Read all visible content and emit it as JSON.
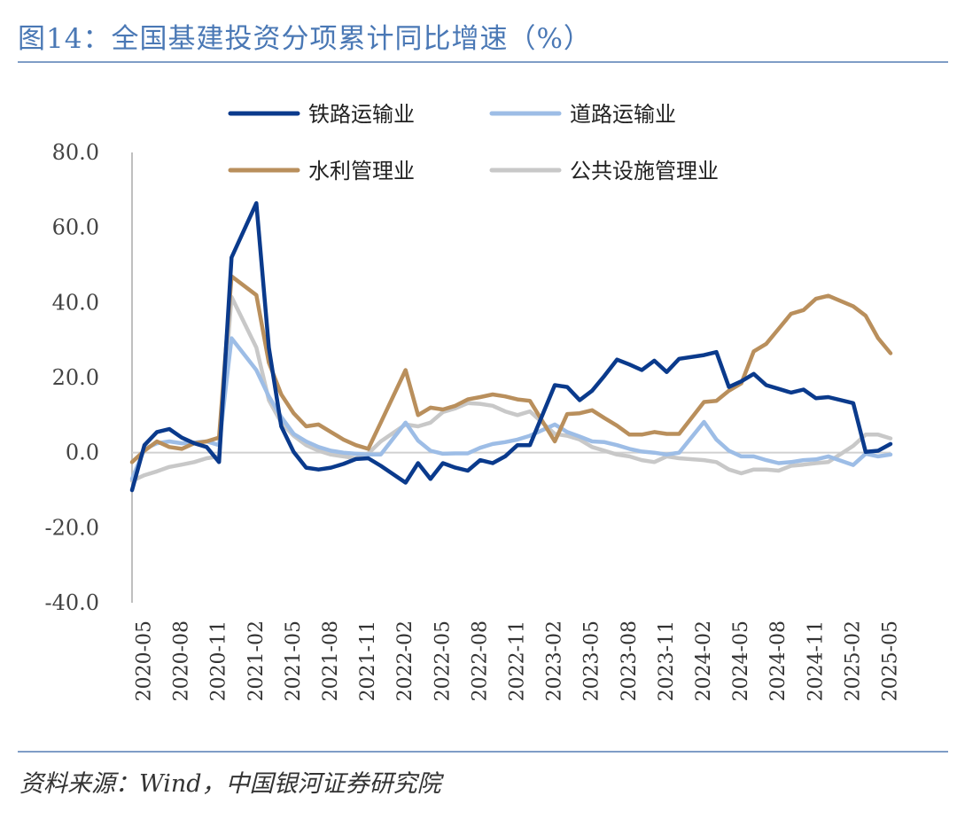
{
  "title": "图14：全国基建投资分项累计同比增速（%）",
  "source": "资料来源：Wind，中国银河证券研究院",
  "chart_data": {
    "type": "line",
    "title": "图14：全国基建投资分项累计同比增速（%）",
    "xlabel": "",
    "ylabel": "",
    "ylim": [
      -40,
      80
    ],
    "yticks": [
      "80.0",
      "60.0",
      "40.0",
      "20.0",
      "0.0",
      "-20.0",
      "-40.0"
    ],
    "x_tick_labels": [
      "2020-05",
      "2020-08",
      "2020-11",
      "2021-02",
      "2021-05",
      "2021-08",
      "2021-11",
      "2022-02",
      "2022-05",
      "2022-08",
      "2022-11",
      "2023-02",
      "2023-05",
      "2023-08",
      "2023-11",
      "2024-02",
      "2024-05",
      "2024-08",
      "2024-11",
      "2025-02",
      "2025-05"
    ],
    "x": [
      "2020-04",
      "2020-05",
      "2020-06",
      "2020-07",
      "2020-08",
      "2020-09",
      "2020-10",
      "2020-11",
      "2020-12",
      "2021-02",
      "2021-03",
      "2021-04",
      "2021-05",
      "2021-06",
      "2021-07",
      "2021-08",
      "2021-09",
      "2021-10",
      "2021-11",
      "2021-12",
      "2022-02",
      "2022-03",
      "2022-04",
      "2022-05",
      "2022-06",
      "2022-07",
      "2022-08",
      "2022-09",
      "2022-10",
      "2022-11",
      "2022-12",
      "2023-02",
      "2023-03",
      "2023-04",
      "2023-05",
      "2023-06",
      "2023-07",
      "2023-08",
      "2023-09",
      "2023-10",
      "2023-11",
      "2023-12",
      "2024-02",
      "2024-03",
      "2024-04",
      "2024-05",
      "2024-06",
      "2024-07",
      "2024-08",
      "2024-09",
      "2024-10",
      "2024-11",
      "2024-12",
      "2025-02",
      "2025-03",
      "2025-04",
      "2025-05"
    ],
    "legend_position": "top",
    "grid": false,
    "series": [
      {
        "name": "铁路运输业",
        "color": "#0a3a8c",
        "values": [
          -10.0,
          2.0,
          5.5,
          6.3,
          4.0,
          2.5,
          1.5,
          -2.5,
          52.0,
          66.5,
          28.0,
          7.0,
          0.2,
          -4.0,
          -4.5,
          -4.0,
          -3.0,
          -1.7,
          -1.5,
          -3.5,
          -8.0,
          -2.8,
          -7.0,
          -2.8,
          -4.0,
          -4.8,
          -2.0,
          -2.8,
          -1.0,
          2.0,
          2.0,
          18.0,
          17.5,
          14.0,
          16.5,
          20.5,
          24.8,
          23.5,
          22.0,
          24.5,
          21.5,
          25.0,
          26.0,
          26.8,
          17.5,
          19.0,
          21.0,
          18.0,
          17.0,
          16.0,
          16.8,
          14.5,
          14.8,
          13.2,
          0.2,
          0.5,
          2.3
        ]
      },
      {
        "name": "道路运输业",
        "color": "#9dbde6",
        "values": [
          -7.0,
          1.0,
          2.5,
          3.0,
          2.5,
          2.7,
          3.0,
          2.0,
          30.5,
          22.0,
          15.0,
          9.5,
          5.0,
          3.0,
          1.5,
          0.5,
          0.0,
          -0.3,
          -0.5,
          -0.5,
          8.0,
          3.2,
          0.5,
          -0.3,
          -0.2,
          -0.2,
          1.3,
          2.3,
          2.8,
          3.5,
          4.5,
          7.5,
          5.5,
          4.3,
          3.0,
          2.8,
          2.0,
          1.0,
          0.3,
          0.0,
          -0.5,
          0.0,
          8.2,
          3.5,
          0.5,
          -1.0,
          -1.0,
          -2.0,
          -2.8,
          -2.5,
          -2.0,
          -1.8,
          -1.0,
          -3.3,
          -0.3,
          -1.0,
          -0.5
        ]
      },
      {
        "name": "水利管理业",
        "color": "#b98f5c",
        "values": [
          -2.5,
          0.5,
          3.0,
          1.5,
          1.0,
          2.5,
          3.0,
          4.0,
          47.0,
          42.0,
          24.0,
          15.5,
          10.5,
          7.0,
          7.5,
          5.5,
          3.5,
          2.0,
          1.0,
          8.0,
          22.0,
          10.0,
          12.0,
          11.5,
          12.5,
          14.2,
          14.8,
          15.5,
          15.0,
          14.2,
          13.8,
          3.0,
          10.3,
          10.5,
          11.3,
          9.2,
          7.2,
          4.8,
          4.8,
          5.5,
          5.0,
          5.0,
          13.5,
          13.8,
          16.5,
          18.5,
          27.0,
          29.0,
          33.0,
          37.0,
          38.0,
          41.0,
          41.8,
          39.0,
          36.5,
          30.5,
          26.5
        ]
      },
      {
        "name": "公共设施管理业",
        "color": "#c8c8c8",
        "values": [
          -7.5,
          -6.0,
          -5.0,
          -3.8,
          -3.2,
          -2.5,
          -1.5,
          -1.0,
          41.5,
          28.0,
          14.0,
          8.0,
          4.5,
          2.0,
          0.5,
          -0.5,
          -1.0,
          -1.5,
          -0.2,
          3.0,
          7.5,
          7.0,
          8.0,
          10.8,
          11.8,
          13.2,
          13.0,
          12.5,
          11.0,
          10.0,
          11.0,
          5.0,
          4.5,
          3.5,
          1.5,
          0.5,
          -0.5,
          -1.0,
          -2.0,
          -2.5,
          -1.0,
          -1.5,
          -2.0,
          -2.5,
          -4.5,
          -5.5,
          -4.5,
          -4.5,
          -4.8,
          -3.5,
          -3.2,
          -2.8,
          -2.5,
          1.8,
          4.8,
          4.8,
          3.8
        ]
      }
    ]
  }
}
